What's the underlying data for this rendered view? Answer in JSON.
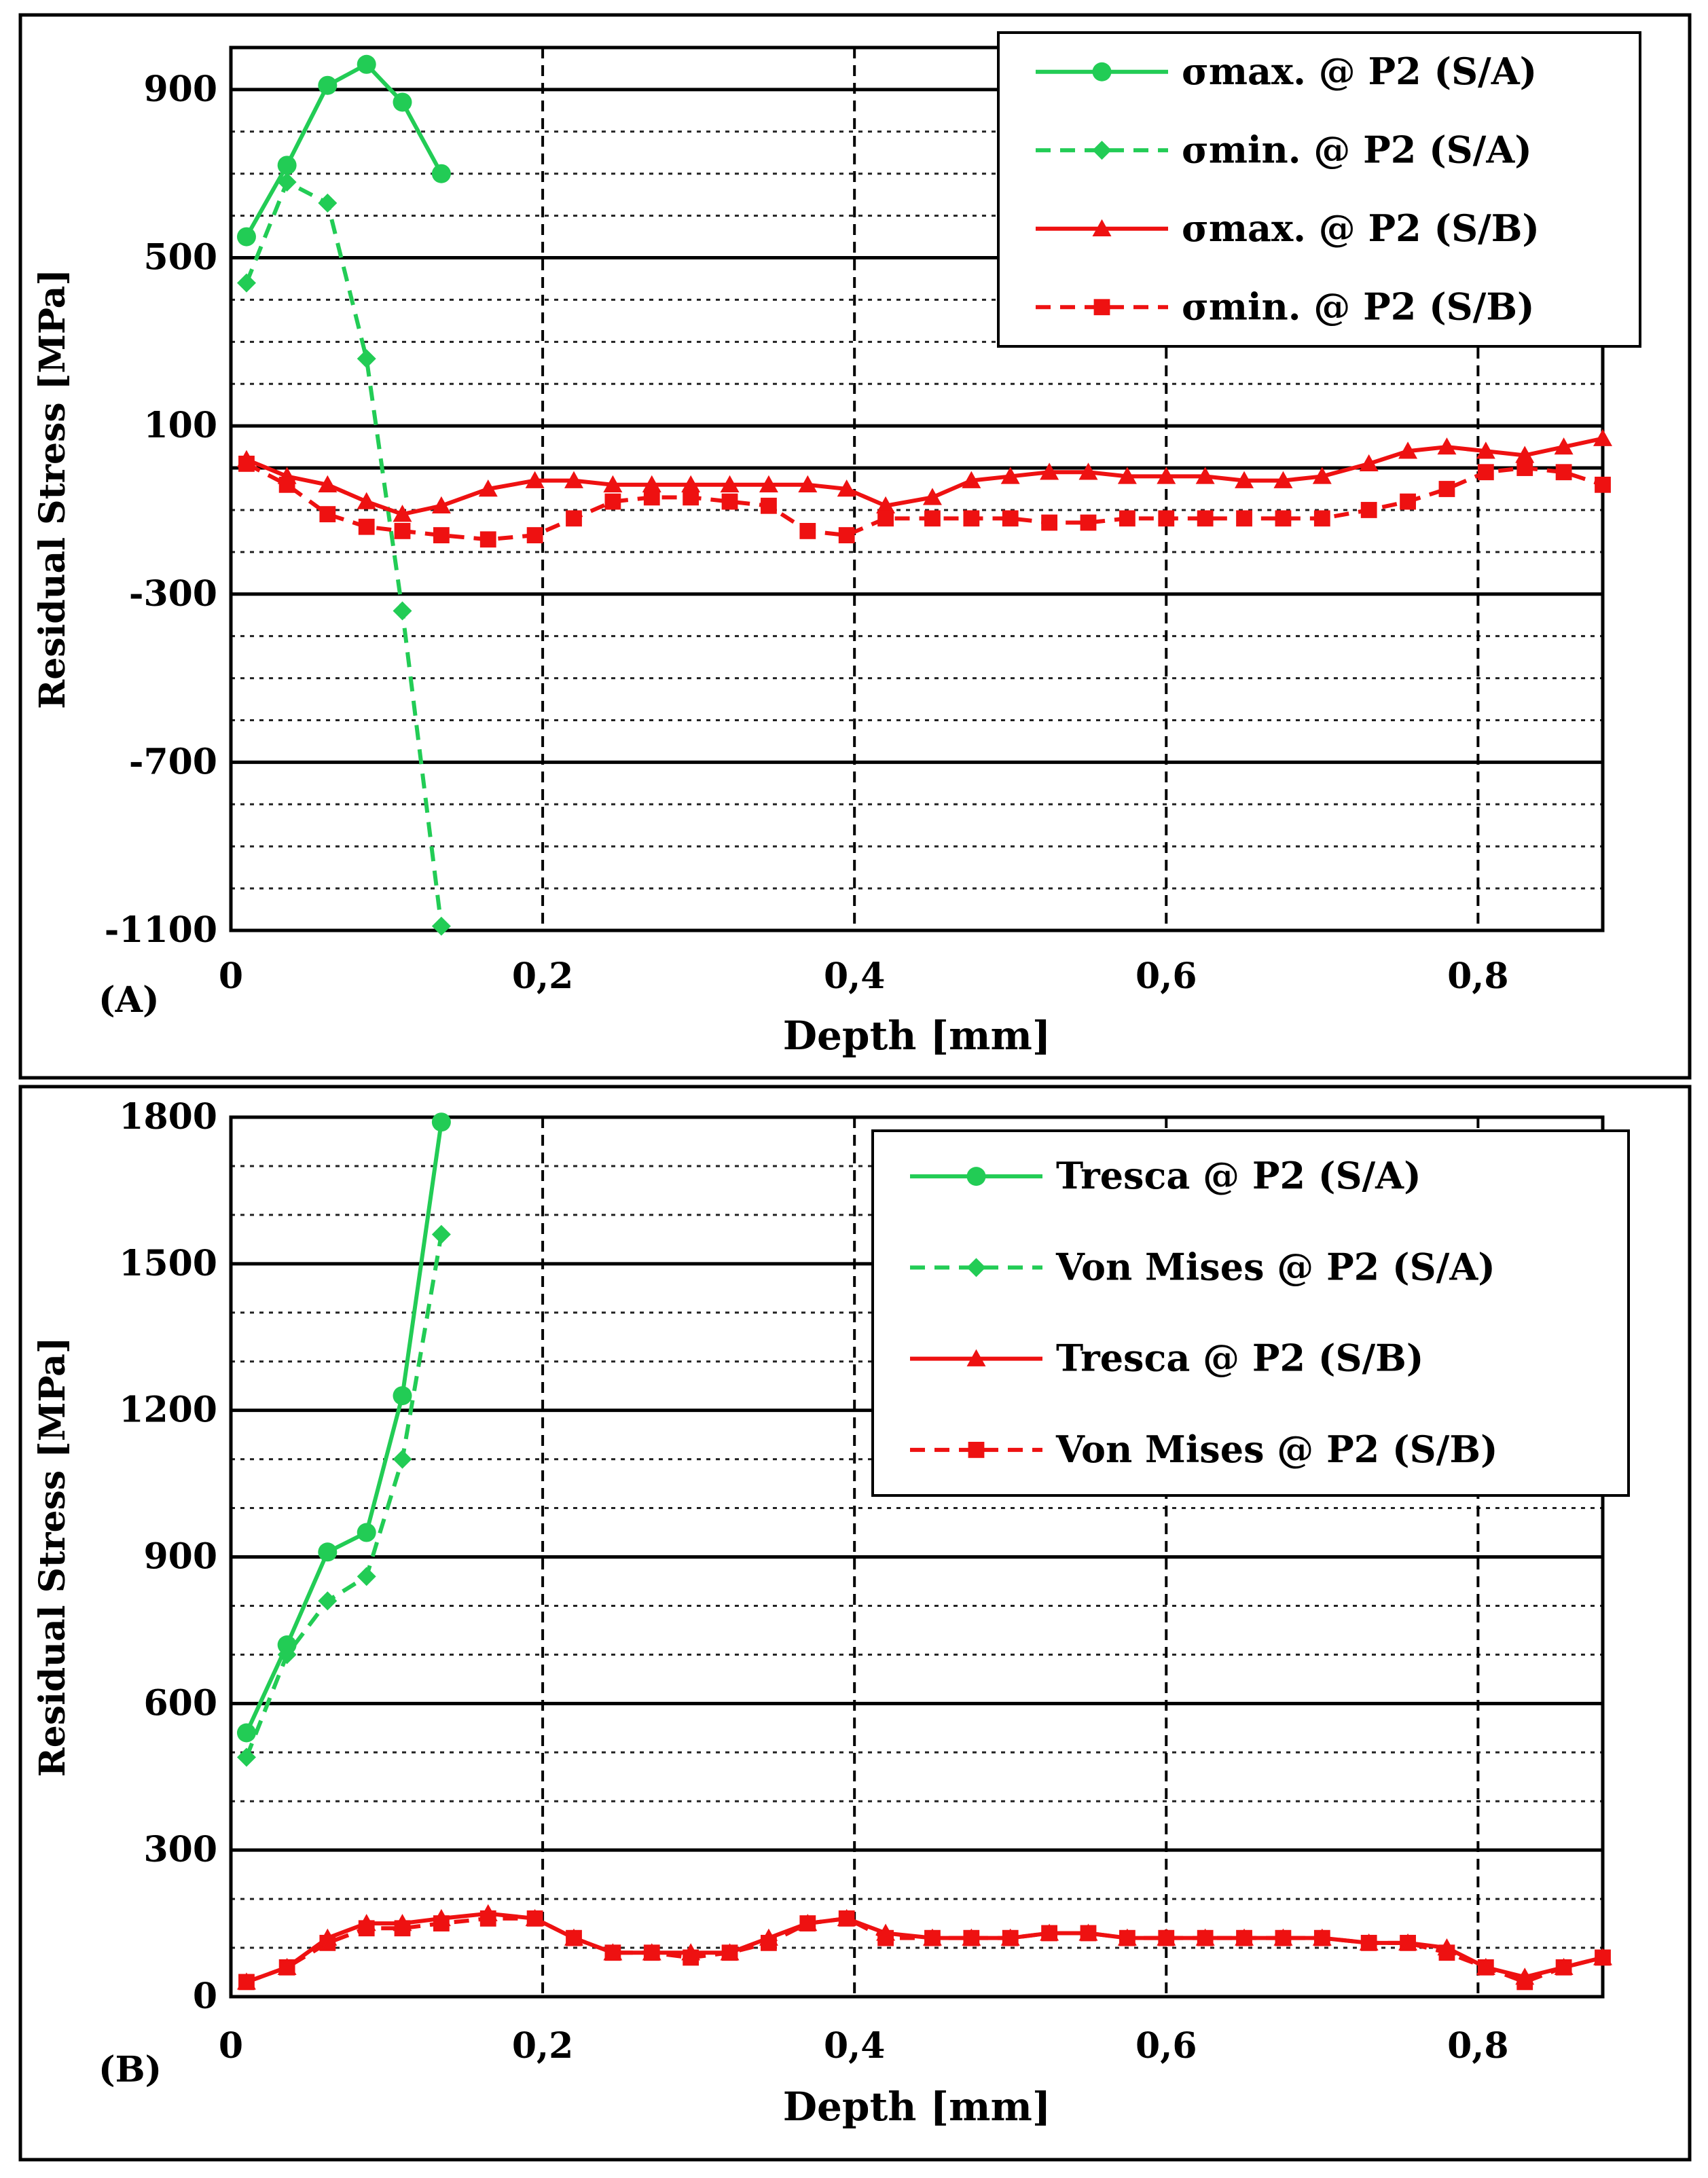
{
  "colors": {
    "green": "#22cc55",
    "red": "#ee1111"
  },
  "chart_data": [
    {
      "type": "line",
      "panel_label": "(A)",
      "xlabel": "Depth [mm]",
      "ylabel": "Residual Stress [MPa]",
      "xlim": [
        0,
        0.88
      ],
      "ylim": [
        -1100,
        1000
      ],
      "x_ticks": [
        0,
        0.2,
        0.4,
        0.6,
        0.8
      ],
      "x_tick_labels": [
        "0",
        "0,2",
        "0,4",
        "0,6",
        "0,8"
      ],
      "y_ticks": [
        -1100,
        -700,
        -300,
        100,
        500,
        900
      ],
      "y_tick_labels": [
        "-1100",
        "-700",
        "-300",
        "100",
        "500",
        "900"
      ],
      "y_minor_step": 100,
      "legend_position": "top-right",
      "series": [
        {
          "name": "σmax. @ P2 (S/A)",
          "color": "green",
          "style": "solid",
          "marker": "circle",
          "x": [
            0.01,
            0.036,
            0.062,
            0.087,
            0.11,
            0.135
          ],
          "y": [
            550,
            720,
            910,
            960,
            870,
            700
          ]
        },
        {
          "name": "σmin. @ P2 (S/A)",
          "color": "green",
          "style": "dashed",
          "marker": "diamond",
          "x": [
            0.01,
            0.036,
            0.062,
            0.087,
            0.11,
            0.135
          ],
          "y": [
            440,
            680,
            630,
            260,
            -340,
            -1090
          ]
        },
        {
          "name": "σmax. @ P2 (S/B)",
          "color": "red",
          "style": "solid",
          "marker": "triangle",
          "x": [
            0.01,
            0.036,
            0.062,
            0.087,
            0.11,
            0.135,
            0.165,
            0.195,
            0.22,
            0.245,
            0.27,
            0.295,
            0.32,
            0.345,
            0.37,
            0.395,
            0.42,
            0.45,
            0.475,
            0.5,
            0.525,
            0.55,
            0.575,
            0.6,
            0.625,
            0.65,
            0.675,
            0.7,
            0.73,
            0.755,
            0.78,
            0.805,
            0.83,
            0.855,
            0.88
          ],
          "y": [
            20,
            -20,
            -40,
            -80,
            -110,
            -90,
            -50,
            -30,
            -30,
            -40,
            -40,
            -40,
            -40,
            -40,
            -40,
            -50,
            -90,
            -70,
            -30,
            -20,
            -10,
            -10,
            -20,
            -20,
            -20,
            -30,
            -30,
            -20,
            10,
            40,
            50,
            40,
            30,
            50,
            70
          ]
        },
        {
          "name": "σmin. @ P2 (S/B)",
          "color": "red",
          "style": "dashed",
          "marker": "square",
          "x": [
            0.01,
            0.036,
            0.062,
            0.087,
            0.11,
            0.135,
            0.165,
            0.195,
            0.22,
            0.245,
            0.27,
            0.295,
            0.32,
            0.345,
            0.37,
            0.395,
            0.42,
            0.45,
            0.475,
            0.5,
            0.525,
            0.55,
            0.575,
            0.6,
            0.625,
            0.65,
            0.675,
            0.7,
            0.73,
            0.755,
            0.78,
            0.805,
            0.83,
            0.855,
            0.88
          ],
          "y": [
            10,
            -40,
            -110,
            -140,
            -150,
            -160,
            -170,
            -160,
            -120,
            -80,
            -70,
            -70,
            -80,
            -90,
            -150,
            -160,
            -120,
            -120,
            -120,
            -120,
            -130,
            -130,
            -120,
            -120,
            -120,
            -120,
            -120,
            -120,
            -100,
            -80,
            -50,
            -10,
            0,
            -10,
            -40
          ]
        }
      ]
    },
    {
      "type": "line",
      "panel_label": "(B)",
      "xlabel": "Depth [mm]",
      "ylabel": "Residual Stress [MPa]",
      "xlim": [
        0,
        0.88
      ],
      "ylim": [
        0,
        1800
      ],
      "x_ticks": [
        0,
        0.2,
        0.4,
        0.6,
        0.8
      ],
      "x_tick_labels": [
        "0",
        "0,2",
        "0,4",
        "0,6",
        "0,8"
      ],
      "y_ticks": [
        0,
        300,
        600,
        900,
        1200,
        1500,
        1800
      ],
      "y_tick_labels": [
        "0",
        "300",
        "600",
        "900",
        "1200",
        "1500",
        "1800"
      ],
      "y_minor_step": 100,
      "legend_position": "top-right",
      "series": [
        {
          "name": "Tresca @ P2 (S/A)",
          "color": "green",
          "style": "solid",
          "marker": "circle",
          "x": [
            0.01,
            0.036,
            0.062,
            0.087,
            0.11,
            0.135
          ],
          "y": [
            540,
            720,
            910,
            950,
            1230,
            1790
          ]
        },
        {
          "name": "Von Mises @ P2 (S/A)",
          "color": "green",
          "style": "dashed",
          "marker": "diamond",
          "x": [
            0.01,
            0.036,
            0.062,
            0.087,
            0.11,
            0.135
          ],
          "y": [
            490,
            700,
            810,
            860,
            1100,
            1560
          ]
        },
        {
          "name": "Tresca @ P2 (S/B)",
          "color": "red",
          "style": "solid",
          "marker": "triangle",
          "x": [
            0.01,
            0.036,
            0.062,
            0.087,
            0.11,
            0.135,
            0.165,
            0.195,
            0.22,
            0.245,
            0.27,
            0.295,
            0.32,
            0.345,
            0.37,
            0.395,
            0.42,
            0.45,
            0.475,
            0.5,
            0.525,
            0.55,
            0.575,
            0.6,
            0.625,
            0.65,
            0.675,
            0.7,
            0.73,
            0.755,
            0.78,
            0.805,
            0.83,
            0.855,
            0.88
          ],
          "y": [
            30,
            60,
            120,
            150,
            150,
            160,
            170,
            160,
            120,
            90,
            90,
            90,
            90,
            120,
            150,
            160,
            130,
            120,
            120,
            120,
            130,
            130,
            120,
            120,
            120,
            120,
            120,
            120,
            110,
            110,
            100,
            60,
            40,
            60,
            80
          ]
        },
        {
          "name": "Von Mises @ P2 (S/B)",
          "color": "red",
          "style": "dashed",
          "marker": "square",
          "x": [
            0.01,
            0.036,
            0.062,
            0.087,
            0.11,
            0.135,
            0.165,
            0.195,
            0.22,
            0.245,
            0.27,
            0.295,
            0.32,
            0.345,
            0.37,
            0.395,
            0.42,
            0.45,
            0.475,
            0.5,
            0.525,
            0.55,
            0.575,
            0.6,
            0.625,
            0.65,
            0.675,
            0.7,
            0.73,
            0.755,
            0.78,
            0.805,
            0.83,
            0.855,
            0.88
          ],
          "y": [
            30,
            60,
            110,
            140,
            140,
            150,
            160,
            160,
            120,
            90,
            90,
            80,
            90,
            110,
            150,
            160,
            120,
            120,
            120,
            120,
            130,
            130,
            120,
            120,
            120,
            120,
            120,
            120,
            110,
            110,
            90,
            60,
            30,
            60,
            80
          ]
        }
      ]
    }
  ]
}
